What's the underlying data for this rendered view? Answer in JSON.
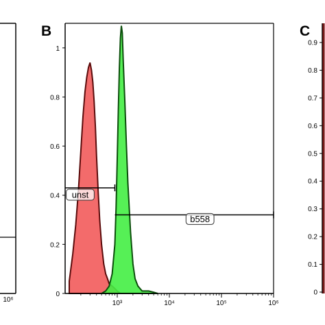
{
  "panels": {
    "left": {
      "x_tick_labels": [
        "10⁶"
      ]
    },
    "center": {
      "letter": "B",
      "gate_labels": {
        "unst": "unst",
        "b558": "b558"
      }
    },
    "right": {
      "letter": "C",
      "y_tick_labels": [
        "0.9",
        "0.8",
        "0.7",
        "0.6",
        "0.5",
        "0.4",
        "0.3",
        "0.2",
        "0.1",
        "0"
      ]
    }
  },
  "chart_data": {
    "type": "area",
    "x_scale": "log",
    "xlim": [
      100,
      1000000
    ],
    "ylim": [
      0,
      1.1
    ],
    "x_ticks": [
      {
        "value": 1000,
        "label": "10³"
      },
      {
        "value": 10000,
        "label": "10⁴"
      },
      {
        "value": 100000,
        "label": "10⁵"
      },
      {
        "value": 1000000,
        "label": "10⁶"
      }
    ],
    "y_ticks": [
      {
        "value": 1,
        "label": "1"
      },
      {
        "value": 0.8,
        "label": "0.8"
      },
      {
        "value": 0.6,
        "label": "0.6"
      },
      {
        "value": 0.4,
        "label": "0.4"
      },
      {
        "value": 0.2,
        "label": "0.2"
      },
      {
        "value": 0,
        "label": "0"
      }
    ],
    "series": [
      {
        "color": "#f25b5b",
        "edge_color": "#5a0b0b",
        "x": [
          120,
          140,
          160,
          180,
          200,
          220,
          240,
          260,
          280,
          300,
          320,
          340,
          360,
          380,
          400,
          430,
          460,
          500,
          550,
          600,
          650,
          700,
          800,
          900,
          1000,
          1150
        ],
        "y": [
          0.05,
          0.16,
          0.28,
          0.42,
          0.58,
          0.72,
          0.82,
          0.88,
          0.92,
          0.94,
          0.91,
          0.86,
          0.78,
          0.68,
          0.56,
          0.42,
          0.3,
          0.2,
          0.12,
          0.08,
          0.06,
          0.04,
          0.03,
          0.02,
          0.01,
          0
        ]
      },
      {
        "color": "#44ee44",
        "edge_color": "#0b4d0b",
        "x": [
          500,
          600,
          700,
          800,
          900,
          950,
          1000,
          1050,
          1100,
          1150,
          1200,
          1250,
          1300,
          1400,
          1500,
          1600,
          1800,
          2000,
          2200,
          2500,
          3000,
          3500,
          4000,
          5000,
          6000
        ],
        "y": [
          0,
          0.01,
          0.03,
          0.08,
          0.2,
          0.35,
          0.55,
          0.75,
          0.92,
          1.04,
          1.09,
          1.06,
          0.95,
          0.78,
          0.6,
          0.45,
          0.25,
          0.12,
          0.06,
          0.03,
          0.01,
          0.01,
          0.01,
          0.005,
          0
        ]
      }
    ],
    "gates": [
      {
        "label": "unst",
        "x_start": 100,
        "x_end": 900,
        "y": 0.43
      },
      {
        "label": "b558",
        "x_start": 900,
        "x_end": 1000000,
        "y": 0.32
      }
    ]
  }
}
